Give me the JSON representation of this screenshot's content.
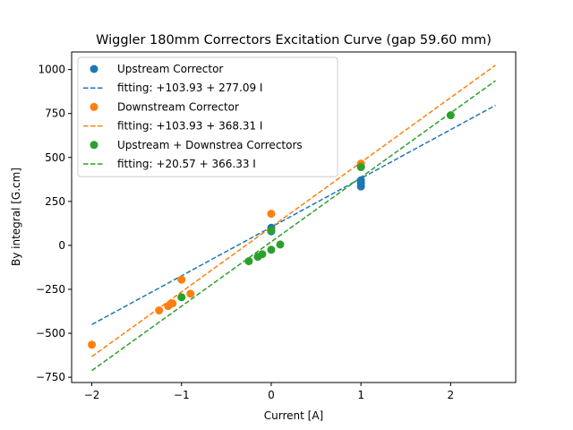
{
  "chart_data": {
    "type": "scatter",
    "title": "Wiggler 180mm Correctors Excitation Curve (gap 59.60 mm)",
    "xlabel": "Current [A]",
    "ylabel": "By integral [G.cm]",
    "xlim": [
      -2.225,
      2.725
    ],
    "ylim": [
      -780,
      1100
    ],
    "xticks": [
      -2,
      -1,
      0,
      1,
      2
    ],
    "xtick_labels": [
      "−2",
      "−1",
      "0",
      "1",
      "2"
    ],
    "yticks": [
      -750,
      -500,
      -250,
      0,
      250,
      500,
      750,
      1000
    ],
    "ytick_labels": [
      "−750",
      "−500",
      "−250",
      "0",
      "250",
      "500",
      "750",
      "1000"
    ],
    "grid": false,
    "legend_position": "top-left",
    "series": [
      {
        "name": "Upstream Corrector",
        "kind": "points",
        "color": "#1f77b4",
        "points": [
          [
            0,
            80
          ],
          [
            0,
            100
          ],
          [
            1,
            335
          ],
          [
            1,
            355
          ],
          [
            1,
            370
          ],
          [
            1,
            450
          ]
        ]
      },
      {
        "name": "fitting: +103.93 + 277.09 I",
        "kind": "fit",
        "color": "#1f77b4",
        "intercept": 103.93,
        "slope": 277.09,
        "x_range": [
          -2,
          2.5
        ]
      },
      {
        "name": "Downstream Corrector",
        "kind": "points",
        "color": "#ff7f0e",
        "points": [
          [
            -2,
            -565
          ],
          [
            -1.25,
            -370
          ],
          [
            -1.15,
            -345
          ],
          [
            -1.1,
            -330
          ],
          [
            -1,
            -195
          ],
          [
            -0.9,
            -275
          ],
          [
            0,
            180
          ],
          [
            1,
            465
          ]
        ]
      },
      {
        "name": "fitting: +103.93 + 368.31 I",
        "kind": "fit",
        "color": "#ff7f0e",
        "intercept": 103.93,
        "slope": 368.31,
        "x_range": [
          -2,
          2.5
        ]
      },
      {
        "name": "Upstream + Downstrea Correctors",
        "kind": "points",
        "color": "#2ca02c",
        "points": [
          [
            -1,
            -295
          ],
          [
            -0.25,
            -90
          ],
          [
            -0.15,
            -65
          ],
          [
            -0.1,
            -50
          ],
          [
            0,
            -25
          ],
          [
            0,
            85
          ],
          [
            0.1,
            5
          ],
          [
            1,
            445
          ],
          [
            2,
            740
          ]
        ]
      },
      {
        "name": "fitting: +20.57 + 366.33 I",
        "kind": "fit",
        "color": "#2ca02c",
        "intercept": 20.57,
        "slope": 366.33,
        "x_range": [
          -2,
          2.5
        ]
      }
    ]
  }
}
